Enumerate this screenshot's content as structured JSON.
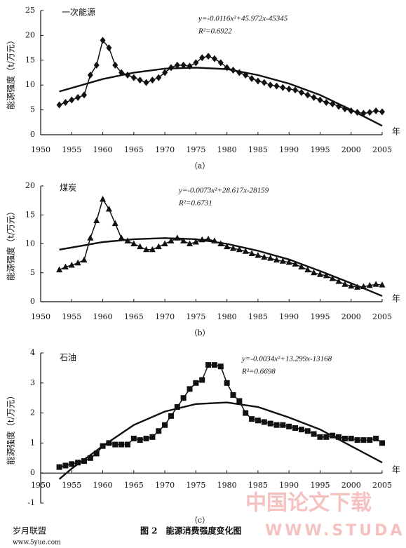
{
  "chart_data": [
    {
      "type": "line",
      "name": "一次能源",
      "equation": "y=-0.0116x²+45.972x-45345",
      "r2": "R²=0.6922",
      "caption": "（a）",
      "ylabel": "能源强度（t/万元）",
      "xlabel": "年",
      "xlim": [
        1950,
        2005
      ],
      "xticks": [
        1950,
        1955,
        1960,
        1965,
        1970,
        1975,
        1980,
        1985,
        1990,
        1995,
        2000,
        2005
      ],
      "ylim": [
        0,
        25
      ],
      "yticks": [
        0,
        5,
        10,
        15,
        20,
        25
      ],
      "x": [
        1953,
        1954,
        1955,
        1956,
        1957,
        1958,
        1959,
        1960,
        1961,
        1962,
        1963,
        1964,
        1965,
        1966,
        1967,
        1968,
        1969,
        1970,
        1971,
        1972,
        1973,
        1974,
        1975,
        1976,
        1977,
        1978,
        1979,
        1980,
        1981,
        1982,
        1983,
        1984,
        1985,
        1986,
        1987,
        1988,
        1989,
        1990,
        1991,
        1992,
        1993,
        1994,
        1995,
        1996,
        1997,
        1998,
        1999,
        2000,
        2001,
        2002,
        2003,
        2004,
        2005
      ],
      "series": [
        {
          "marker": "diamond",
          "color": "#111111",
          "values": [
            6,
            6.5,
            7,
            7.5,
            8,
            12,
            14,
            19,
            17.5,
            14,
            12.5,
            12,
            11.5,
            11,
            10.5,
            11,
            11.5,
            12.5,
            13.5,
            14,
            14,
            13.8,
            14.5,
            15.5,
            15.8,
            15.3,
            14.5,
            13.5,
            13,
            12.5,
            12,
            11.3,
            10.8,
            10.5,
            10,
            9.8,
            9.5,
            9.2,
            9,
            8.5,
            8,
            7.5,
            7,
            6.5,
            6.2,
            5.7,
            5.2,
            4.8,
            4.5,
            4.3,
            4.5,
            4.8,
            4.6
          ]
        },
        {
          "marker": "none",
          "color": "#111111",
          "x": [
            1953,
            1960,
            1965,
            1970,
            1975,
            1980,
            1985,
            1990,
            1995,
            2000,
            2005
          ],
          "values": [
            8.7,
            11.2,
            12.5,
            13.3,
            13.5,
            13.2,
            12,
            10.3,
            8,
            5,
            1.8
          ]
        }
      ]
    },
    {
      "type": "line",
      "name": "煤炭",
      "equation": "y=-0.0073x²+28.617x-28159",
      "r2": "R²=0.6731",
      "caption": "（b）",
      "ylabel": "能源强度（t/万元）",
      "xlabel": "年",
      "xlim": [
        1950,
        2005
      ],
      "xticks": [
        1950,
        1955,
        1960,
        1965,
        1970,
        1975,
        1980,
        1985,
        1990,
        1995,
        2000,
        2005
      ],
      "ylim": [
        0,
        20
      ],
      "yticks": [
        0,
        5,
        10,
        15,
        20
      ],
      "x": [
        1953,
        1954,
        1955,
        1956,
        1957,
        1958,
        1959,
        1960,
        1961,
        1962,
        1963,
        1964,
        1965,
        1966,
        1967,
        1968,
        1969,
        1970,
        1971,
        1972,
        1973,
        1974,
        1975,
        1976,
        1977,
        1978,
        1979,
        1980,
        1981,
        1982,
        1983,
        1984,
        1985,
        1986,
        1987,
        1988,
        1989,
        1990,
        1991,
        1992,
        1993,
        1994,
        1995,
        1996,
        1997,
        1998,
        1999,
        2000,
        2001,
        2002,
        2003,
        2004,
        2005
      ],
      "series": [
        {
          "marker": "triangle",
          "color": "#111111",
          "values": [
            5.5,
            6,
            6.3,
            6.7,
            7.2,
            11,
            14,
            17.7,
            16,
            13.5,
            11,
            10.5,
            10,
            9.5,
            9,
            9,
            9.5,
            10,
            10.5,
            11,
            10.5,
            10,
            10.3,
            10.7,
            10.8,
            10.5,
            10,
            9.5,
            9.2,
            9,
            8.7,
            8.3,
            8,
            7.7,
            7.5,
            7.2,
            7,
            6.8,
            6.5,
            6,
            5.5,
            5,
            4.7,
            4.5,
            4,
            3.5,
            3,
            2.7,
            2.5,
            2.6,
            2.8,
            3,
            2.9
          ]
        },
        {
          "marker": "none",
          "color": "#111111",
          "x": [
            1953,
            1960,
            1965,
            1970,
            1975,
            1980,
            1985,
            1990,
            1995,
            2000,
            2005
          ],
          "values": [
            9,
            10.3,
            10.8,
            11,
            10.8,
            10,
            8.8,
            7.3,
            5.3,
            3.2,
            1
          ]
        }
      ]
    },
    {
      "type": "line",
      "name": "石油",
      "equation": "y=-0.0034x²+13.299x-13168",
      "r2": "R²=0.6698",
      "caption": "（c）",
      "ylabel": "能源强度（t/万元）",
      "xlabel": "年",
      "xlim": [
        1950,
        2005
      ],
      "xticks": [
        1950,
        1955,
        1960,
        1965,
        1970,
        1975,
        1980,
        1985,
        1990,
        1995,
        2000,
        2005
      ],
      "ylim": [
        -1,
        4
      ],
      "yticks": [
        -1,
        0,
        1,
        2,
        3,
        4
      ],
      "x": [
        1953,
        1954,
        1955,
        1956,
        1957,
        1958,
        1959,
        1960,
        1961,
        1962,
        1963,
        1964,
        1965,
        1966,
        1967,
        1968,
        1969,
        1970,
        1971,
        1972,
        1973,
        1974,
        1975,
        1976,
        1977,
        1978,
        1979,
        1980,
        1981,
        1982,
        1983,
        1984,
        1985,
        1986,
        1987,
        1988,
        1989,
        1990,
        1991,
        1992,
        1993,
        1994,
        1995,
        1996,
        1997,
        1998,
        1999,
        2000,
        2001,
        2002,
        2003,
        2004,
        2005
      ],
      "series": [
        {
          "marker": "square",
          "color": "#111111",
          "values": [
            0.2,
            0.25,
            0.3,
            0.35,
            0.4,
            0.5,
            0.65,
            0.9,
            1,
            0.95,
            0.95,
            0.95,
            1.15,
            1.1,
            1.15,
            1.2,
            1.4,
            1.6,
            1.9,
            2.2,
            2.5,
            2.8,
            3,
            3.1,
            3.6,
            3.6,
            3.55,
            3,
            2.6,
            2.4,
            2,
            1.8,
            1.75,
            1.7,
            1.65,
            1.6,
            1.6,
            1.55,
            1.5,
            1.45,
            1.4,
            1.3,
            1.2,
            1.2,
            1.25,
            1.2,
            1.15,
            1.15,
            1.1,
            1.1,
            1.1,
            1.15,
            1
          ]
        },
        {
          "marker": "none",
          "color": "#111111",
          "x": [
            1953,
            1955,
            1960,
            1965,
            1970,
            1975,
            1980,
            1985,
            1990,
            1995,
            2000,
            2005
          ],
          "values": [
            -0.2,
            0.15,
            0.9,
            1.6,
            2.05,
            2.3,
            2.35,
            2.2,
            1.85,
            1.45,
            0.9,
            0.35
          ]
        }
      ]
    }
  ],
  "footer": {
    "site": "岁月联盟",
    "url": "www.5yue.com",
    "figure": "图 2　能源消费强度变化图",
    "watermark": "中国论文下载",
    "watermark_url": "WWW.STUDA"
  }
}
